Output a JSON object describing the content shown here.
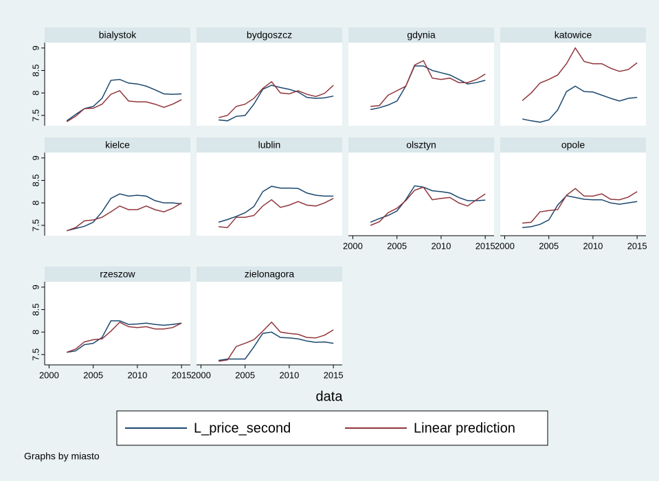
{
  "chart_data": {
    "type": "line",
    "xlabel": "data",
    "note": "Graphs by miasto",
    "x": [
      2002,
      2003,
      2004,
      2005,
      2006,
      2007,
      2008,
      2009,
      2010,
      2011,
      2012,
      2013,
      2014,
      2015
    ],
    "xlim": [
      1999.5,
      2016
    ],
    "xticks": [
      2000,
      2005,
      2010,
      2015
    ],
    "ylim": [
      7.27,
      9.12
    ],
    "yticks": [
      7.5,
      8,
      8.5,
      9
    ],
    "legend": [
      {
        "name": "L_price_second",
        "color": "#1a476f"
      },
      {
        "name": "Linear prediction",
        "color": "#90353b"
      }
    ],
    "panels": [
      {
        "title": "bialystok",
        "series": [
          {
            "values": [
              7.38,
              7.52,
              7.65,
              7.7,
              7.88,
              8.28,
              8.3,
              8.22,
              8.2,
              8.15,
              8.07,
              7.98,
              7.97,
              7.98
            ]
          },
          {
            "values": [
              7.36,
              7.48,
              7.65,
              7.66,
              7.75,
              7.97,
              8.05,
              7.82,
              7.8,
              7.8,
              7.75,
              7.68,
              7.75,
              7.85
            ]
          }
        ]
      },
      {
        "title": "bydgoszcz",
        "series": [
          {
            "values": [
              7.4,
              7.38,
              7.48,
              7.5,
              7.75,
              8.08,
              8.17,
              8.12,
              8.08,
              8.02,
              7.9,
              7.88,
              7.89,
              7.93
            ]
          },
          {
            "values": [
              7.45,
              7.5,
              7.7,
              7.75,
              7.88,
              8.1,
              8.25,
              8.0,
              7.98,
              8.05,
              7.97,
              7.92,
              7.99,
              8.17
            ]
          }
        ]
      },
      {
        "title": "gdynia",
        "series": [
          {
            "values": [
              7.63,
              7.67,
              7.73,
              7.82,
              8.15,
              8.6,
              8.6,
              8.5,
              8.45,
              8.4,
              8.3,
              8.2,
              8.23,
              8.28
            ]
          },
          {
            "values": [
              7.7,
              7.72,
              7.95,
              8.05,
              8.15,
              8.62,
              8.72,
              8.33,
              8.3,
              8.33,
              8.23,
              8.23,
              8.3,
              8.42
            ]
          }
        ]
      },
      {
        "title": "katowice",
        "series": [
          {
            "values": [
              7.42,
              7.38,
              7.35,
              7.4,
              7.62,
              8.03,
              8.15,
              8.03,
              8.02,
              7.95,
              7.88,
              7.82,
              7.88,
              7.9
            ]
          },
          {
            "values": [
              7.83,
              8.0,
              8.22,
              8.3,
              8.4,
              8.65,
              9.0,
              8.7,
              8.65,
              8.65,
              8.55,
              8.48,
              8.52,
              8.67
            ]
          }
        ]
      },
      {
        "title": "kielce",
        "series": [
          {
            "values": [
              7.38,
              7.43,
              7.48,
              7.57,
              7.8,
              8.1,
              8.2,
              8.15,
              8.17,
              8.15,
              8.05,
              8.0,
              8.0,
              7.98
            ]
          },
          {
            "values": [
              7.38,
              7.45,
              7.6,
              7.62,
              7.68,
              7.8,
              7.93,
              7.85,
              7.85,
              7.93,
              7.85,
              7.8,
              7.88,
              8.0
            ]
          }
        ]
      },
      {
        "title": "lublin",
        "series": [
          {
            "values": [
              7.57,
              7.63,
              7.7,
              7.78,
              7.92,
              8.25,
              8.37,
              8.33,
              8.33,
              8.32,
              8.22,
              8.17,
              8.15,
              8.15
            ]
          },
          {
            "values": [
              7.47,
              7.45,
              7.68,
              7.68,
              7.72,
              7.93,
              8.07,
              7.9,
              7.95,
              8.03,
              7.95,
              7.93,
              8.0,
              8.1
            ]
          }
        ]
      },
      {
        "title": "olsztyn",
        "series": [
          {
            "values": [
              7.57,
              7.65,
              7.72,
              7.82,
              8.07,
              8.38,
              8.35,
              8.27,
              8.25,
              8.22,
              8.12,
              8.05,
              8.05,
              8.06
            ]
          },
          {
            "values": [
              7.5,
              7.58,
              7.78,
              7.88,
              8.05,
              8.28,
              8.35,
              8.07,
              8.1,
              8.12,
              8.0,
              7.93,
              8.07,
              8.2
            ]
          }
        ]
      },
      {
        "title": "opole",
        "series": [
          {
            "values": [
              7.45,
              7.47,
              7.52,
              7.62,
              7.95,
              8.16,
              8.12,
              8.08,
              8.07,
              8.07,
              8.0,
              7.97,
              8.0,
              8.03
            ]
          },
          {
            "values": [
              7.55,
              7.57,
              7.8,
              7.83,
              7.85,
              8.17,
              8.32,
              8.15,
              8.15,
              8.2,
              8.08,
              8.07,
              8.13,
              8.25
            ]
          }
        ]
      },
      {
        "title": "rzeszow",
        "series": [
          {
            "values": [
              7.55,
              7.58,
              7.72,
              7.75,
              7.88,
              8.25,
              8.25,
              8.17,
              8.18,
              8.2,
              8.17,
              8.15,
              8.17,
              8.2
            ]
          },
          {
            "values": [
              7.55,
              7.62,
              7.78,
              7.83,
              7.85,
              8.02,
              8.22,
              8.12,
              8.1,
              8.12,
              8.07,
              8.07,
              8.1,
              8.2
            ]
          }
        ]
      },
      {
        "title": "zielonagora",
        "series": [
          {
            "values": [
              7.37,
              7.4,
              7.4,
              7.4,
              7.67,
              7.97,
              8.0,
              7.88,
              7.87,
              7.85,
              7.8,
              7.77,
              7.78,
              7.75
            ]
          },
          {
            "values": [
              7.35,
              7.38,
              7.68,
              7.75,
              7.83,
              8.02,
              8.22,
              8.0,
              7.97,
              7.95,
              7.88,
              7.87,
              7.93,
              8.05
            ]
          }
        ]
      }
    ]
  }
}
